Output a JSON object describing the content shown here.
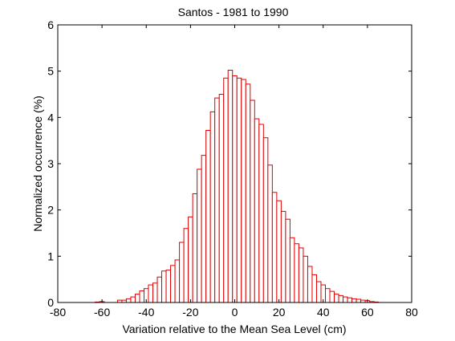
{
  "chart_data": {
    "type": "bar",
    "title": "Santos - 1981 to 1990",
    "xlabel": "Variation relative to the Mean Sea Level (cm)",
    "ylabel": "Normalized occurrence (%)",
    "xlim": [
      -80,
      80
    ],
    "ylim": [
      0,
      6
    ],
    "xticks": [
      "-80",
      "-60",
      "-40",
      "-20",
      "0",
      "20",
      "40",
      "60",
      "80"
    ],
    "yticks": [
      "0",
      "1",
      "2",
      "3",
      "4",
      "5",
      "6"
    ],
    "grid": false,
    "bar_edge_color": "#e00000",
    "bar_fill_color": "#ffffff",
    "axis_color": "#000000",
    "bin_width": 2,
    "x": [
      -62,
      -60,
      -58,
      -56,
      -54,
      -52,
      -50,
      -48,
      -46,
      -44,
      -42,
      -40,
      -38,
      -36,
      -34,
      -32,
      -30,
      -28,
      -26,
      -24,
      -22,
      -20,
      -18,
      -16,
      -14,
      -12,
      -10,
      -8,
      -6,
      -4,
      -2,
      0,
      2,
      4,
      6,
      8,
      10,
      12,
      14,
      16,
      18,
      20,
      22,
      24,
      26,
      28,
      30,
      32,
      34,
      36,
      38,
      40,
      42,
      44,
      46,
      48,
      50,
      52,
      54,
      56,
      58,
      60,
      62,
      64
    ],
    "values": [
      0.01,
      0.02,
      0.0,
      0.0,
      0.0,
      0.05,
      0.05,
      0.08,
      0.12,
      0.18,
      0.25,
      0.3,
      0.38,
      0.42,
      0.55,
      0.68,
      0.7,
      0.8,
      0.92,
      1.3,
      1.6,
      1.85,
      2.35,
      2.88,
      3.18,
      3.72,
      4.12,
      4.42,
      4.5,
      4.85,
      5.02,
      4.9,
      4.85,
      4.82,
      4.72,
      4.37,
      3.97,
      3.85,
      3.56,
      2.97,
      2.38,
      2.2,
      1.97,
      1.8,
      1.4,
      1.27,
      1.18,
      1.0,
      0.78,
      0.6,
      0.45,
      0.38,
      0.3,
      0.24,
      0.18,
      0.15,
      0.12,
      0.1,
      0.08,
      0.07,
      0.05,
      0.04,
      0.02,
      0.01
    ]
  }
}
